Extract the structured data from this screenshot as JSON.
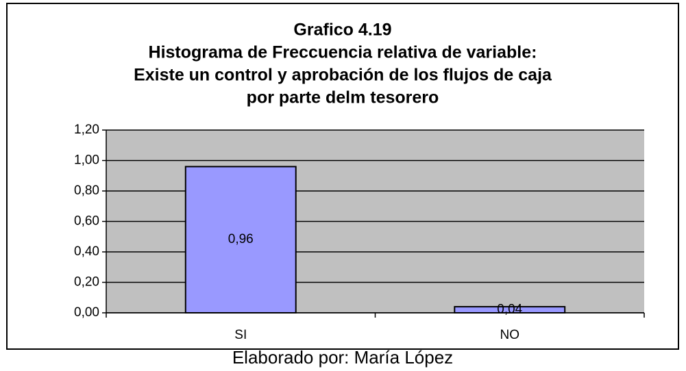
{
  "chart_data": {
    "type": "bar",
    "title": "Grafico 4.19",
    "subtitle": [
      "Histograma de Freccuencia relativa de variable:",
      "Existe un control y aprobación de los flujos de caja",
      "por parte delm tesorero"
    ],
    "categories": [
      "SI",
      "NO"
    ],
    "values": [
      0.96,
      0.04
    ],
    "value_labels": [
      "0,96",
      "0,04"
    ],
    "color": "#9999ff",
    "ylim": [
      0,
      1.2
    ],
    "yticks": [
      {
        "value": 0,
        "label": "0,00"
      },
      {
        "value": 0.2,
        "label": "0,20"
      },
      {
        "value": 0.4,
        "label": "0,40"
      },
      {
        "value": 0.6,
        "label": "0,60"
      },
      {
        "value": 0.8,
        "label": "0,80"
      },
      {
        "value": 1.0,
        "label": "1,00"
      },
      {
        "value": 1.2,
        "label": "1,20"
      }
    ],
    "grid": true,
    "source": "Elaborado por: María López"
  }
}
